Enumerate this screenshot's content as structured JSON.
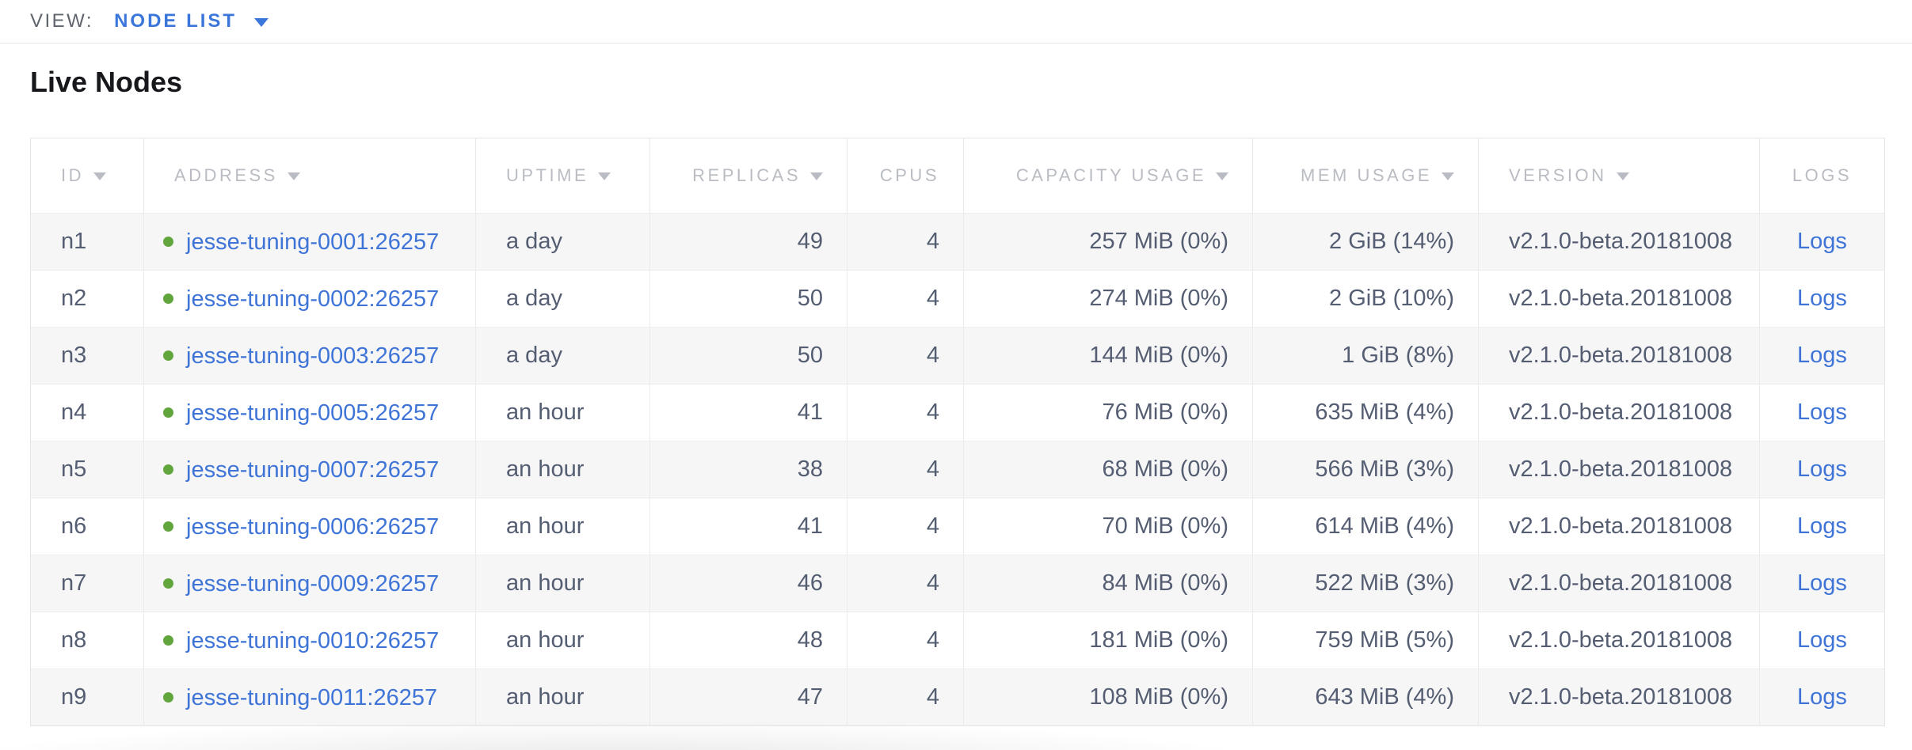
{
  "toolbar": {
    "view_label": "VIEW:",
    "view_value": "NODE LIST"
  },
  "page": {
    "title": "Live Nodes"
  },
  "colors": {
    "link_blue": "#3f74d7",
    "accent_blue": "#3b76db",
    "live_dot_green": "#62a53c",
    "header_gray": "#b9bcc2",
    "body_text": "#545d71",
    "alt_row_bg": "#f6f6f7"
  },
  "table": {
    "columns": [
      {
        "key": "id",
        "label": "ID",
        "sortable": true,
        "align": "left"
      },
      {
        "key": "address",
        "label": "ADDRESS",
        "sortable": true,
        "align": "left",
        "type": "address"
      },
      {
        "key": "uptime",
        "label": "UPTIME",
        "sortable": true,
        "align": "left"
      },
      {
        "key": "replicas",
        "label": "REPLICAS",
        "sortable": true,
        "align": "right"
      },
      {
        "key": "cpus",
        "label": "CPUS",
        "sortable": false,
        "align": "right"
      },
      {
        "key": "capacity",
        "label": "CAPACITY USAGE",
        "sortable": true,
        "align": "right"
      },
      {
        "key": "mem",
        "label": "MEM USAGE",
        "sortable": true,
        "align": "right"
      },
      {
        "key": "version",
        "label": "VERSION",
        "sortable": true,
        "align": "left"
      },
      {
        "key": "logs",
        "label": "LOGS",
        "sortable": false,
        "align": "center",
        "type": "link"
      }
    ],
    "rows": [
      {
        "id": "n1",
        "address": "jesse-tuning-0001:26257",
        "status": "live",
        "uptime": "a day",
        "replicas": "49",
        "cpus": "4",
        "capacity": "257 MiB (0%)",
        "mem": "2 GiB (14%)",
        "version": "v2.1.0-beta.20181008",
        "logs": "Logs"
      },
      {
        "id": "n2",
        "address": "jesse-tuning-0002:26257",
        "status": "live",
        "uptime": "a day",
        "replicas": "50",
        "cpus": "4",
        "capacity": "274 MiB (0%)",
        "mem": "2 GiB (10%)",
        "version": "v2.1.0-beta.20181008",
        "logs": "Logs"
      },
      {
        "id": "n3",
        "address": "jesse-tuning-0003:26257",
        "status": "live",
        "uptime": "a day",
        "replicas": "50",
        "cpus": "4",
        "capacity": "144 MiB (0%)",
        "mem": "1 GiB (8%)",
        "version": "v2.1.0-beta.20181008",
        "logs": "Logs"
      },
      {
        "id": "n4",
        "address": "jesse-tuning-0005:26257",
        "status": "live",
        "uptime": "an hour",
        "replicas": "41",
        "cpus": "4",
        "capacity": "76 MiB (0%)",
        "mem": "635 MiB (4%)",
        "version": "v2.1.0-beta.20181008",
        "logs": "Logs"
      },
      {
        "id": "n5",
        "address": "jesse-tuning-0007:26257",
        "status": "live",
        "uptime": "an hour",
        "replicas": "38",
        "cpus": "4",
        "capacity": "68 MiB (0%)",
        "mem": "566 MiB (3%)",
        "version": "v2.1.0-beta.20181008",
        "logs": "Logs"
      },
      {
        "id": "n6",
        "address": "jesse-tuning-0006:26257",
        "status": "live",
        "uptime": "an hour",
        "replicas": "41",
        "cpus": "4",
        "capacity": "70 MiB (0%)",
        "mem": "614 MiB (4%)",
        "version": "v2.1.0-beta.20181008",
        "logs": "Logs"
      },
      {
        "id": "n7",
        "address": "jesse-tuning-0009:26257",
        "status": "live",
        "uptime": "an hour",
        "replicas": "46",
        "cpus": "4",
        "capacity": "84 MiB (0%)",
        "mem": "522 MiB (3%)",
        "version": "v2.1.0-beta.20181008",
        "logs": "Logs"
      },
      {
        "id": "n8",
        "address": "jesse-tuning-0010:26257",
        "status": "live",
        "uptime": "an hour",
        "replicas": "48",
        "cpus": "4",
        "capacity": "181 MiB (0%)",
        "mem": "759 MiB (5%)",
        "version": "v2.1.0-beta.20181008",
        "logs": "Logs"
      },
      {
        "id": "n9",
        "address": "jesse-tuning-0011:26257",
        "status": "live",
        "uptime": "an hour",
        "replicas": "47",
        "cpus": "4",
        "capacity": "108 MiB (0%)",
        "mem": "643 MiB (4%)",
        "version": "v2.1.0-beta.20181008",
        "logs": "Logs"
      }
    ]
  }
}
